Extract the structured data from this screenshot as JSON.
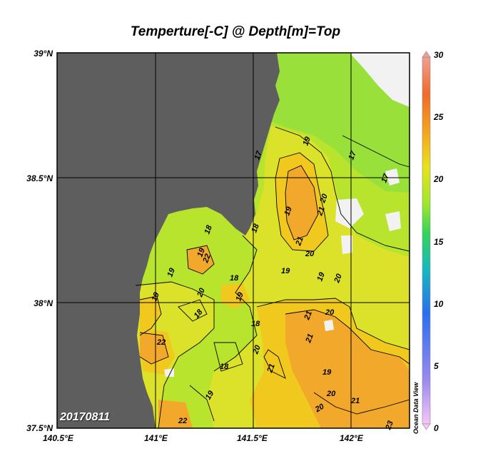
{
  "title": "Temperture[-C] @ Depth[m]=Top",
  "date_stamp": "20170811",
  "watermark": "Ocean Data View",
  "lat_labels": [
    "39°N",
    "38.5°N",
    "38°N",
    "37.5°N"
  ],
  "lon_labels": [
    "140.5°E",
    "141°E",
    "141.5°E",
    "142°E"
  ],
  "colorbar": {
    "ticks": [
      "30",
      "25",
      "20",
      "15",
      "10",
      "5",
      "0"
    ],
    "min": 0,
    "max": 30,
    "colors": [
      "#f6c6f6",
      "#9a8af0",
      "#2a6ef0",
      "#16b8c0",
      "#34d45a",
      "#9ee82c",
      "#e8e21c",
      "#f6a21c",
      "#f06a2a",
      "#f0a090"
    ]
  },
  "map_colors": {
    "land": "#5e5e5e",
    "no_data": "#f2f2f2",
    "temp_17": "#9ae03a",
    "temp_18": "#b8e42e",
    "temp_19": "#dce22a",
    "temp_20": "#f0c81e",
    "temp_21": "#f2a82a"
  },
  "contour_labels": [
    "17",
    "17",
    "17",
    "18",
    "18",
    "18",
    "18",
    "18",
    "18",
    "19",
    "19",
    "19",
    "19",
    "19",
    "19",
    "19",
    "19",
    "19",
    "19",
    "20",
    "20",
    "20",
    "20",
    "20",
    "20",
    "20",
    "20",
    "21",
    "21",
    "21",
    "21",
    "21",
    "21",
    "22",
    "22",
    "22",
    "23"
  ]
}
